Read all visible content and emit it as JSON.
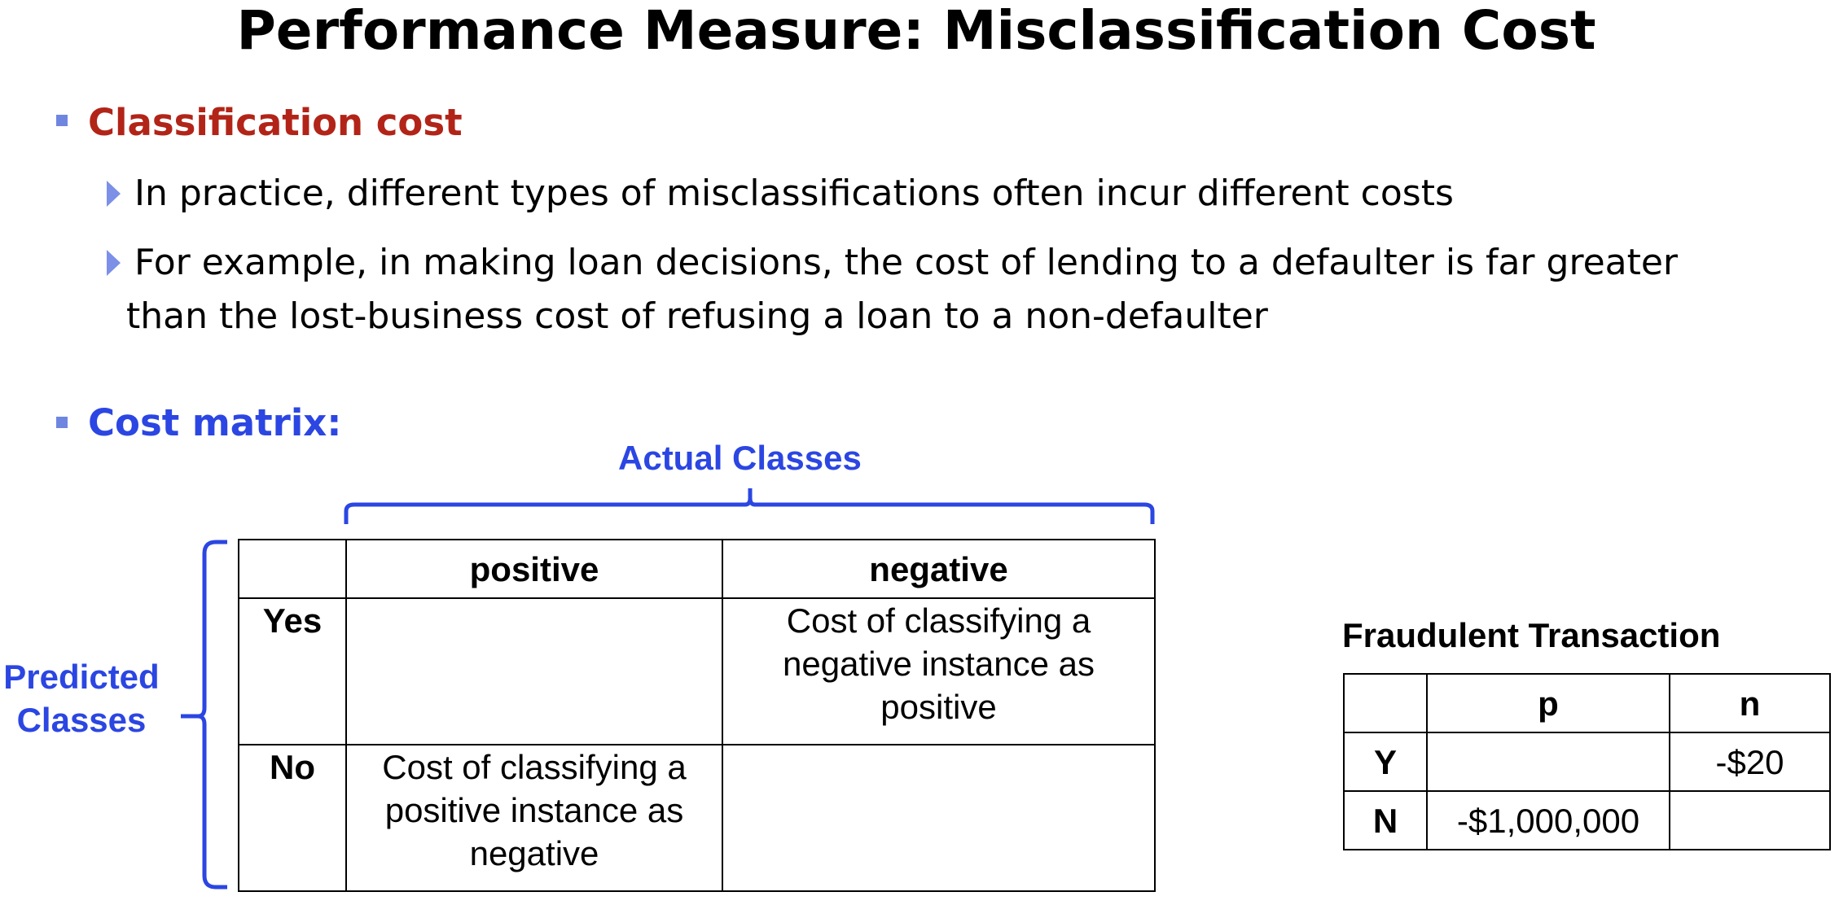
{
  "slide": {
    "title": "Performance Measure: Misclassification Cost",
    "section1": {
      "heading": "Classification cost",
      "bullets": [
        "In practice, different types of misclassifications often incur different costs",
        "For example, in making loan decisions, the cost of lending to a defaulter is far greater",
        "than the lost-business cost of refusing a loan to a non-defaulter"
      ]
    },
    "section2": {
      "heading": "Cost matrix:"
    },
    "colors": {
      "heading_red": "#b22418",
      "accent_blue": "#2b46e2",
      "bullet_blue": "#7b90e6"
    }
  },
  "cost_matrix": {
    "actual_label": "Actual Classes",
    "predicted_label_line1": "Predicted",
    "predicted_label_line2": "Classes",
    "col_headers": [
      "positive",
      "negative"
    ],
    "row_headers": [
      "Yes",
      "No"
    ],
    "yes_negative": [
      "Cost of classifying a",
      "negative instance as",
      "positive"
    ],
    "no_positive": [
      "Cost of classifying a",
      "positive instance as",
      "negative"
    ]
  },
  "fraud_table": {
    "title": "Fraudulent Transaction",
    "col_headers": [
      "p",
      "n"
    ],
    "row_headers": [
      "Y",
      "N"
    ],
    "y_n": "-$20",
    "n_p": "-$1,000,000"
  }
}
